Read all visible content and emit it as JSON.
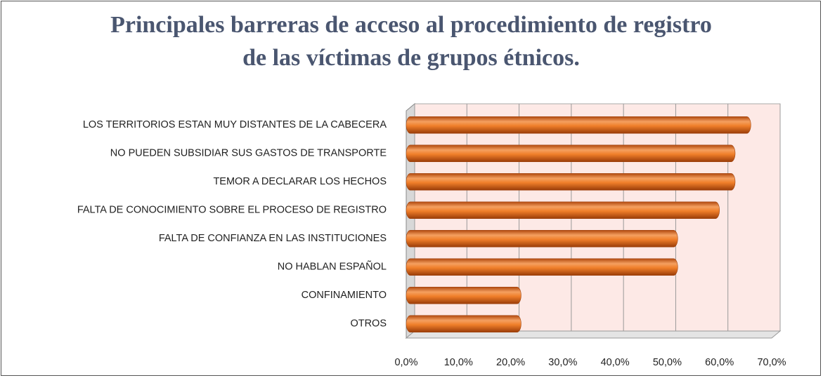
{
  "chart_data": {
    "type": "hbar",
    "title": "Principales barreras de acceso al procedimiento de registro de las víctimas de grupos étnicos.",
    "categories": [
      "LOS TERRITORIOS  ESTAN  MUY DISTANTES  DE LA CABECERA",
      "NO PUEDEN  SUBSIDIAR SUS GASTOS DE TRANSPORTE",
      "TEMOR A DECLARAR LOS HECHOS",
      "FALTA DE CONOCIMIENTO  SOBRE EL  PROCESO DE REGISTRO",
      "FALTA DE CONFIANZA  EN LAS INSTITUCIONES",
      "NO HABLAN ESPAÑOL",
      "CONFINAMIENTO",
      "OTROS"
    ],
    "values": [
      66,
      63,
      63,
      60,
      52,
      52,
      22,
      22
    ],
    "color": "#f07f2a",
    "xlim": [
      0,
      70
    ],
    "xticks": [
      {
        "value": 0,
        "label": "0,0%"
      },
      {
        "value": 10,
        "label": "10,0%"
      },
      {
        "value": 20,
        "label": "20,0%"
      },
      {
        "value": 30,
        "label": "30,0%"
      },
      {
        "value": 40,
        "label": "40,0%"
      },
      {
        "value": 50,
        "label": "50,0%"
      },
      {
        "value": 60,
        "label": "60,0%"
      },
      {
        "value": 70,
        "label": "70,0%"
      }
    ],
    "grid": true
  }
}
